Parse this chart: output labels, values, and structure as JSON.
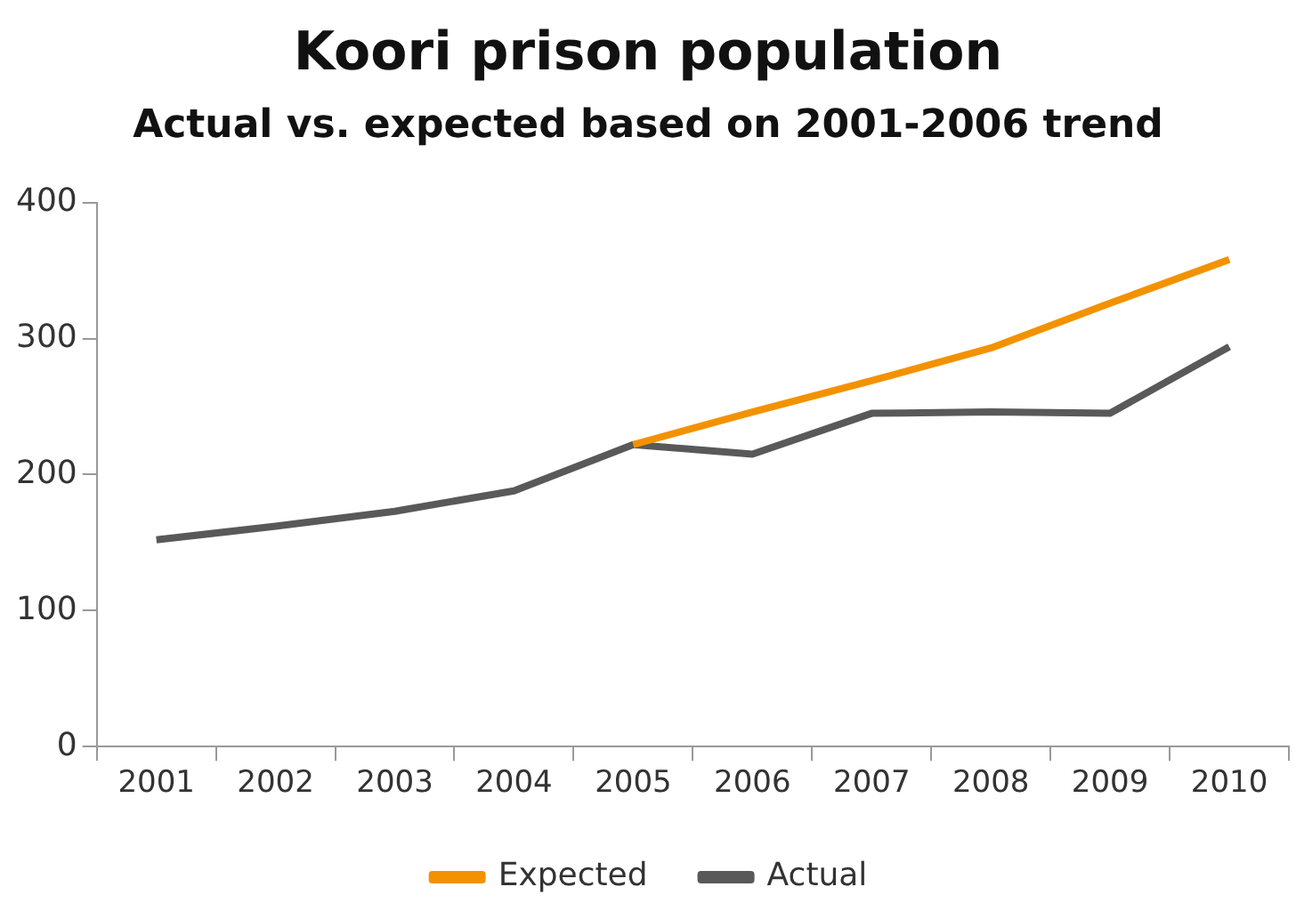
{
  "chart_data": {
    "type": "line",
    "title": "Koori prison population",
    "subtitle": "Actual vs. expected based on 2001-2006 trend",
    "categories": [
      "2001",
      "2002",
      "2003",
      "2004",
      "2005",
      "2006",
      "2007",
      "2008",
      "2009",
      "2010"
    ],
    "series": [
      {
        "name": "Expected",
        "color": "#f39200",
        "values": [
          null,
          null,
          null,
          null,
          222,
          246,
          269,
          293,
          326,
          358
        ]
      },
      {
        "name": "Actual",
        "color": "#595959",
        "values": [
          152,
          162,
          173,
          188,
          222,
          215,
          245,
          246,
          245,
          294
        ]
      }
    ],
    "ylim": [
      0,
      400
    ],
    "yticks": [
      0,
      100,
      200,
      300,
      400
    ],
    "grid": false,
    "legend": "bottom",
    "marker": "none",
    "line_style": "solid"
  }
}
